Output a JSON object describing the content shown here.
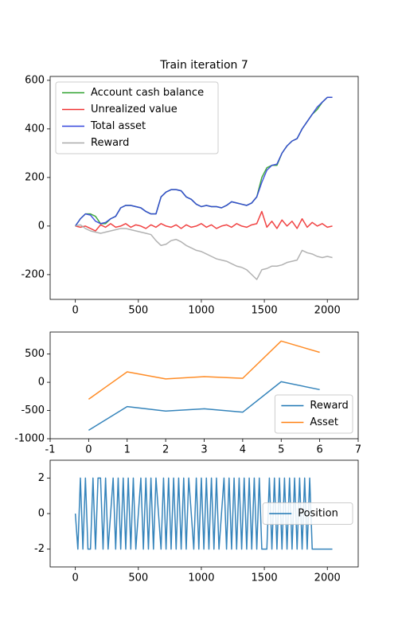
{
  "chart_data": [
    {
      "type": "line",
      "title": "Train iteration 7",
      "x": [
        0,
        40,
        80,
        120,
        160,
        200,
        240,
        280,
        320,
        360,
        400,
        440,
        480,
        520,
        560,
        600,
        640,
        680,
        720,
        760,
        800,
        840,
        880,
        920,
        960,
        1000,
        1040,
        1080,
        1120,
        1160,
        1200,
        1240,
        1280,
        1320,
        1360,
        1400,
        1440,
        1480,
        1520,
        1560,
        1600,
        1640,
        1680,
        1720,
        1760,
        1800,
        1840,
        1880,
        1920,
        1960,
        2000,
        2040
      ],
      "series": [
        {
          "name": "Account cash balance",
          "color": "#2ca02c",
          "values": [
            0,
            30,
            50,
            50,
            40,
            10,
            10,
            30,
            40,
            75,
            85,
            85,
            80,
            75,
            60,
            50,
            50,
            120,
            140,
            150,
            150,
            145,
            120,
            110,
            90,
            80,
            85,
            80,
            80,
            75,
            85,
            100,
            95,
            90,
            85,
            95,
            120,
            200,
            240,
            250,
            250,
            300,
            330,
            350,
            360,
            400,
            430,
            460,
            480,
            510,
            530,
            530
          ]
        },
        {
          "name": "Unrealized value",
          "color": "#f03030",
          "values": [
            0,
            -5,
            0,
            -10,
            -20,
            5,
            -5,
            10,
            -5,
            0,
            10,
            -5,
            5,
            0,
            -10,
            5,
            -5,
            10,
            0,
            -5,
            5,
            -10,
            5,
            -5,
            0,
            10,
            -5,
            5,
            -10,
            0,
            5,
            -5,
            10,
            0,
            -5,
            5,
            10,
            60,
            -5,
            20,
            -10,
            25,
            0,
            20,
            -10,
            30,
            -5,
            15,
            0,
            10,
            -5,
            0
          ]
        },
        {
          "name": "Total asset",
          "color": "#3344dd",
          "values": [
            0,
            30,
            50,
            45,
            20,
            10,
            15,
            30,
            40,
            75,
            85,
            85,
            80,
            75,
            60,
            50,
            50,
            120,
            140,
            150,
            150,
            145,
            120,
            110,
            90,
            80,
            85,
            80,
            80,
            75,
            85,
            100,
            95,
            90,
            85,
            95,
            120,
            180,
            230,
            250,
            255,
            300,
            330,
            350,
            360,
            400,
            430,
            460,
            490,
            510,
            530,
            530
          ]
        },
        {
          "name": "Reward",
          "color": "#aaaaaa",
          "values": [
            0,
            5,
            -10,
            -20,
            -25,
            -30,
            -25,
            -20,
            -15,
            -10,
            -10,
            -15,
            -20,
            -25,
            -30,
            -35,
            -60,
            -80,
            -75,
            -60,
            -55,
            -65,
            -80,
            -90,
            -100,
            -105,
            -115,
            -125,
            -135,
            -140,
            -145,
            -155,
            -165,
            -170,
            -180,
            -200,
            -220,
            -180,
            -175,
            -165,
            -165,
            -160,
            -150,
            -145,
            -140,
            -100,
            -110,
            -115,
            -125,
            -130,
            -125,
            -130
          ]
        }
      ],
      "xlim": [
        -200,
        2245
      ],
      "xticks": [
        0,
        500,
        1000,
        1500,
        2000
      ],
      "ylim": [
        -302,
        616
      ],
      "yticks": [
        -200,
        0,
        200,
        400,
        600
      ],
      "legend": "upper left"
    },
    {
      "type": "line",
      "x": [
        0,
        1,
        2,
        3,
        4,
        5,
        6
      ],
      "series": [
        {
          "name": "Reward",
          "color": "#1f77b4",
          "values": [
            -850,
            -430,
            -510,
            -470,
            -530,
            10,
            -130
          ]
        },
        {
          "name": "Asset",
          "color": "#ff7f0e",
          "values": [
            -300,
            185,
            60,
            100,
            70,
            730,
            530
          ]
        }
      ],
      "xlim": [
        -1,
        7
      ],
      "xticks": [
        -1,
        0,
        1,
        2,
        3,
        4,
        5,
        6,
        7
      ],
      "ylim": [
        -1000,
        890
      ],
      "yticks": [
        -1000,
        -500,
        0,
        500
      ],
      "legend": "lower right"
    },
    {
      "type": "line",
      "x": [
        0,
        20,
        40,
        60,
        80,
        100,
        120,
        140,
        160,
        180,
        200,
        220,
        240,
        260,
        280,
        300,
        320,
        340,
        360,
        380,
        400,
        420,
        440,
        460,
        480,
        500,
        520,
        540,
        560,
        580,
        600,
        620,
        640,
        660,
        680,
        700,
        720,
        740,
        760,
        780,
        800,
        820,
        840,
        860,
        880,
        900,
        920,
        940,
        960,
        980,
        1000,
        1020,
        1040,
        1060,
        1080,
        1100,
        1120,
        1140,
        1160,
        1180,
        1200,
        1220,
        1240,
        1260,
        1280,
        1300,
        1320,
        1340,
        1360,
        1380,
        1400,
        1420,
        1440,
        1460,
        1480,
        1500,
        1520,
        1540,
        1560,
        1580,
        1600,
        1620,
        1640,
        1660,
        1680,
        1700,
        1720,
        1740,
        1760,
        1780,
        1800,
        1820,
        1840,
        1860,
        1880,
        1900,
        1920,
        1940,
        1960,
        1980,
        2000,
        2020,
        2040
      ],
      "series": [
        {
          "name": "Position",
          "color": "#1f77b4",
          "values": [
            0,
            -2,
            2,
            -2,
            2,
            -2,
            -2,
            2,
            -2,
            2,
            2,
            -2,
            2,
            -2,
            0,
            2,
            -2,
            2,
            -2,
            2,
            -2,
            2,
            -2,
            2,
            -2,
            0,
            2,
            -2,
            2,
            -2,
            2,
            -2,
            2,
            0,
            -2,
            2,
            -2,
            2,
            -2,
            2,
            -2,
            2,
            -2,
            2,
            -2,
            2,
            0,
            -2,
            2,
            -2,
            2,
            -2,
            2,
            -2,
            2,
            -2,
            2,
            -2,
            0,
            2,
            -2,
            2,
            -2,
            2,
            -2,
            2,
            -2,
            2,
            -2,
            2,
            -2,
            2,
            -2,
            2,
            -2,
            -2,
            -2,
            2,
            -2,
            2,
            -2,
            2,
            -2,
            2,
            -2,
            2,
            -2,
            2,
            -2,
            2,
            -2,
            2,
            -2,
            2,
            -2,
            -2,
            -2,
            -2,
            -2,
            -2,
            -2,
            -2,
            -2
          ]
        }
      ],
      "xlim": [
        -200,
        2245
      ],
      "xticks": [
        0,
        500,
        1000,
        1500,
        2000
      ],
      "ylim": [
        -3,
        3
      ],
      "yticks": [
        -2,
        0,
        2
      ],
      "legend": "center right"
    }
  ]
}
